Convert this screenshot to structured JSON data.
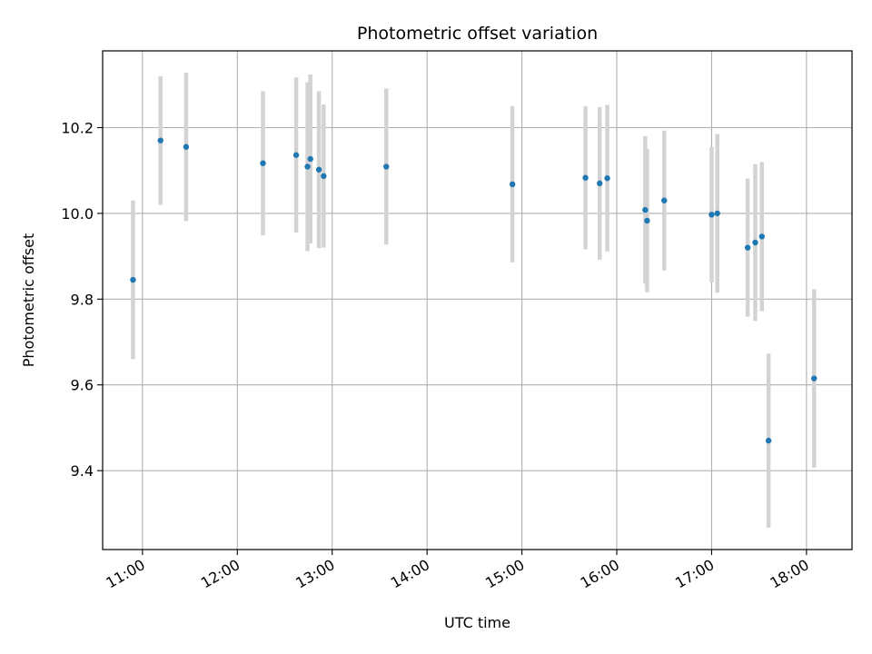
{
  "chart_data": {
    "type": "scatter",
    "title": "Photometric offset variation",
    "xlabel": "UTC time",
    "ylabel": "Photometric offset",
    "x_unit": "hours UTC",
    "xlim": [
      10.58,
      18.48
    ],
    "ylim": [
      9.216,
      10.379
    ],
    "x_ticks": [
      11,
      12,
      13,
      14,
      15,
      16,
      17,
      18
    ],
    "x_tick_labels": [
      "11:00",
      "12:00",
      "13:00",
      "14:00",
      "15:00",
      "16:00",
      "17:00",
      "18:00"
    ],
    "y_ticks": [
      9.4,
      9.6,
      9.8,
      10.0,
      10.2
    ],
    "y_tick_labels": [
      "9.4",
      "9.6",
      "9.8",
      "10.0",
      "10.2"
    ],
    "grid": true,
    "point_color": "#1f77b4",
    "errorbar_color": "#d3d3d3",
    "series": [
      {
        "points": [
          {
            "x": 10.9,
            "y": 9.845,
            "yerr": 0.185
          },
          {
            "x": 11.19,
            "y": 10.17,
            "yerr": 0.15
          },
          {
            "x": 11.46,
            "y": 10.155,
            "yerr": 0.173
          },
          {
            "x": 12.27,
            "y": 10.117,
            "yerr": 0.168
          },
          {
            "x": 12.62,
            "y": 10.136,
            "yerr": 0.181
          },
          {
            "x": 12.74,
            "y": 10.109,
            "yerr": 0.197
          },
          {
            "x": 12.77,
            "y": 10.127,
            "yerr": 0.197
          },
          {
            "x": 12.86,
            "y": 10.102,
            "yerr": 0.183
          },
          {
            "x": 12.91,
            "y": 10.087,
            "yerr": 0.167
          },
          {
            "x": 13.57,
            "y": 10.109,
            "yerr": 0.182
          },
          {
            "x": 14.9,
            "y": 10.068,
            "yerr": 0.182
          },
          {
            "x": 15.67,
            "y": 10.083,
            "yerr": 0.167
          },
          {
            "x": 15.82,
            "y": 10.07,
            "yerr": 0.178
          },
          {
            "x": 15.9,
            "y": 10.082,
            "yerr": 0.171
          },
          {
            "x": 16.3,
            "y": 10.008,
            "yerr": 0.172
          },
          {
            "x": 16.32,
            "y": 9.983,
            "yerr": 0.167
          },
          {
            "x": 16.5,
            "y": 10.03,
            "yerr": 0.163
          },
          {
            "x": 17.0,
            "y": 9.997,
            "yerr": 0.158
          },
          {
            "x": 17.06,
            "y": 10.0,
            "yerr": 0.185
          },
          {
            "x": 17.38,
            "y": 9.92,
            "yerr": 0.161
          },
          {
            "x": 17.46,
            "y": 9.932,
            "yerr": 0.183
          },
          {
            "x": 17.53,
            "y": 9.946,
            "yerr": 0.174
          },
          {
            "x": 17.6,
            "y": 9.47,
            "yerr": 0.203
          },
          {
            "x": 18.08,
            "y": 9.615,
            "yerr": 0.208
          }
        ]
      }
    ]
  }
}
